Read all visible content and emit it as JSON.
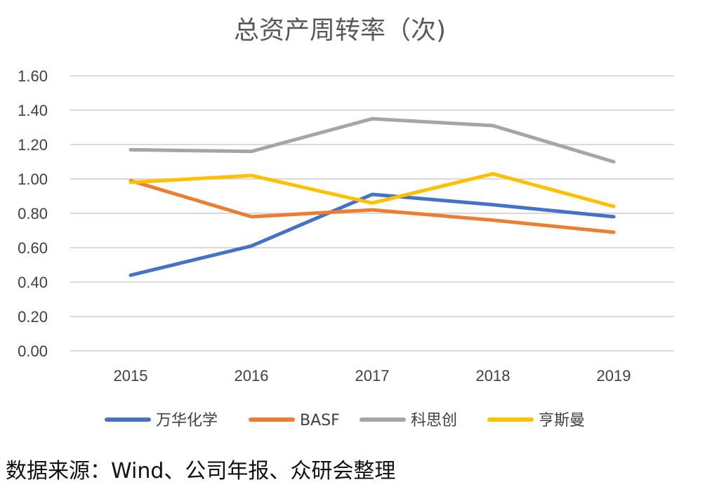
{
  "chart_data": {
    "type": "line",
    "title": "总资产周转率（次)",
    "categories": [
      "2015",
      "2016",
      "2017",
      "2018",
      "2019"
    ],
    "ylim": [
      0,
      1.6
    ],
    "yticks": [
      "0.00",
      "0.20",
      "0.40",
      "0.60",
      "0.80",
      "1.00",
      "1.20",
      "1.40",
      "1.60"
    ],
    "grid": true,
    "legend_position": "bottom",
    "series": [
      {
        "name": "万华化学",
        "color": "#4472C4",
        "values": [
          0.44,
          0.61,
          0.91,
          0.85,
          0.78
        ]
      },
      {
        "name": "BASF",
        "color": "#ED7D31",
        "values": [
          0.99,
          0.78,
          0.82,
          0.76,
          0.69
        ]
      },
      {
        "name": "科思创",
        "color": "#A5A5A5",
        "values": [
          1.17,
          1.16,
          1.35,
          1.31,
          1.1
        ]
      },
      {
        "name": "亨斯曼",
        "color": "#FFC000",
        "values": [
          0.98,
          1.02,
          0.86,
          1.03,
          0.84
        ]
      }
    ]
  },
  "source": "数据来源：Wind、公司年报、众研会整理"
}
